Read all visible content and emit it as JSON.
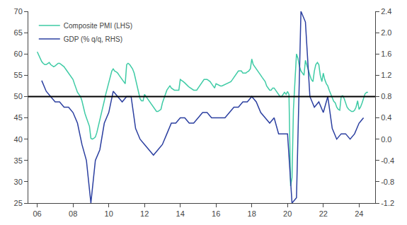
{
  "chart_data": {
    "type": "line",
    "series": [
      {
        "name": "Composite PMI (LHS)",
        "color": "#3ECBA5",
        "x": [
          2006.0,
          2006.08,
          2006.17,
          2006.25,
          2006.33,
          2006.42,
          2006.5,
          2006.58,
          2006.67,
          2006.75,
          2006.83,
          2006.92,
          2007.0,
          2007.08,
          2007.17,
          2007.25,
          2007.33,
          2007.42,
          2007.5,
          2007.58,
          2007.67,
          2007.75,
          2007.83,
          2007.92,
          2008.0,
          2008.08,
          2008.17,
          2008.25,
          2008.33,
          2008.42,
          2008.5,
          2008.58,
          2008.67,
          2008.75,
          2008.83,
          2008.92,
          2009.0,
          2009.08,
          2009.17,
          2009.25,
          2009.33,
          2009.42,
          2009.5,
          2009.58,
          2009.67,
          2009.75,
          2009.83,
          2009.92,
          2010.0,
          2010.08,
          2010.17,
          2010.25,
          2010.33,
          2010.42,
          2010.5,
          2010.58,
          2010.67,
          2010.75,
          2010.83,
          2010.92,
          2011.0,
          2011.08,
          2011.17,
          2011.25,
          2011.33,
          2011.42,
          2011.5,
          2011.58,
          2011.67,
          2011.75,
          2011.83,
          2011.92,
          2012.0,
          2012.08,
          2012.17,
          2012.25,
          2012.33,
          2012.42,
          2012.5,
          2012.58,
          2012.67,
          2012.75,
          2012.83,
          2012.92,
          2013.0,
          2013.08,
          2013.17,
          2013.25,
          2013.33,
          2013.42,
          2013.5,
          2013.58,
          2013.67,
          2013.75,
          2013.83,
          2013.92,
          2014.0,
          2014.08,
          2014.17,
          2014.25,
          2014.33,
          2014.42,
          2014.5,
          2014.58,
          2014.67,
          2014.75,
          2014.83,
          2014.92,
          2015.0,
          2015.08,
          2015.17,
          2015.25,
          2015.33,
          2015.42,
          2015.5,
          2015.58,
          2015.67,
          2015.75,
          2015.83,
          2015.92,
          2016.0,
          2016.08,
          2016.17,
          2016.25,
          2016.33,
          2016.42,
          2016.5,
          2016.58,
          2016.67,
          2016.75,
          2016.83,
          2016.92,
          2017.0,
          2017.08,
          2017.17,
          2017.25,
          2017.33,
          2017.42,
          2017.5,
          2017.58,
          2017.67,
          2017.75,
          2017.83,
          2017.92,
          2018.0,
          2018.08,
          2018.17,
          2018.25,
          2018.33,
          2018.42,
          2018.5,
          2018.58,
          2018.67,
          2018.75,
          2018.83,
          2018.92,
          2019.0,
          2019.08,
          2019.17,
          2019.25,
          2019.33,
          2019.42,
          2019.5,
          2019.58,
          2019.67,
          2019.75,
          2019.83,
          2019.92,
          2020.0,
          2020.08,
          2020.17,
          2020.25,
          2020.33,
          2020.42,
          2020.5,
          2020.58,
          2020.67,
          2020.75,
          2020.83,
          2020.92,
          2021.0,
          2021.08,
          2021.17,
          2021.25,
          2021.33,
          2021.42,
          2021.5,
          2021.58,
          2021.67,
          2021.75,
          2021.83,
          2021.92,
          2022.0,
          2022.08,
          2022.17,
          2022.25,
          2022.33,
          2022.42,
          2022.5,
          2022.58,
          2022.67,
          2022.75,
          2022.83,
          2022.92,
          2023.0,
          2023.08,
          2023.17,
          2023.25,
          2023.33,
          2023.42,
          2023.5,
          2023.58,
          2023.67,
          2023.75,
          2023.83,
          2023.92,
          2024.0,
          2024.08,
          2024.17,
          2024.25,
          2024.33,
          2024.42,
          2024.5
        ],
        "values": [
          60.5,
          59.8,
          59.0,
          58.2,
          57.8,
          57.5,
          57.5,
          57.8,
          58.0,
          57.5,
          57.2,
          57.0,
          57.2,
          57.5,
          57.8,
          57.8,
          57.5,
          57.2,
          57.0,
          56.5,
          56.0,
          55.5,
          55.0,
          54.5,
          54.0,
          53.0,
          52.0,
          51.0,
          50.5,
          50.0,
          49.0,
          47.5,
          46.0,
          45.0,
          44.0,
          43.0,
          40.2,
          40.0,
          40.2,
          40.5,
          41.5,
          43.0,
          44.5,
          46.0,
          47.5,
          49.0,
          50.5,
          52.0,
          53.0,
          54.5,
          56.0,
          56.5,
          56.0,
          55.8,
          55.5,
          55.0,
          54.5,
          54.0,
          53.5,
          53.0,
          57.5,
          57.8,
          57.5,
          57.0,
          56.5,
          55.5,
          54.0,
          52.5,
          51.0,
          49.5,
          49.0,
          49.0,
          50.5,
          50.0,
          49.5,
          49.0,
          48.5,
          48.0,
          47.5,
          47.0,
          46.5,
          46.5,
          46.7,
          47.0,
          48.5,
          49.5,
          50.5,
          51.5,
          52.0,
          52.5,
          52.0,
          51.8,
          51.5,
          51.5,
          51.5,
          51.5,
          54.0,
          53.8,
          53.5,
          53.2,
          52.8,
          52.5,
          52.2,
          52.0,
          51.8,
          51.5,
          51.5,
          51.5,
          52.0,
          52.5,
          53.0,
          53.5,
          54.0,
          54.0,
          54.0,
          53.8,
          53.5,
          53.0,
          52.5,
          52.0,
          53.0,
          52.8,
          52.7,
          52.5,
          52.5,
          52.7,
          52.8,
          53.0,
          53.2,
          53.3,
          53.5,
          54.0,
          54.5,
          55.0,
          55.5,
          56.0,
          56.0,
          56.0,
          55.5,
          55.5,
          55.5,
          55.8,
          56.0,
          56.5,
          58.8,
          57.5,
          57.0,
          56.5,
          56.0,
          55.5,
          55.0,
          54.5,
          54.0,
          53.5,
          52.5,
          52.0,
          51.5,
          51.5,
          52.0,
          52.0,
          51.5,
          51.0,
          50.5,
          50.0,
          50.0,
          50.5,
          51.0,
          50.5,
          51.2,
          50.5,
          29.0,
          31.0,
          47.0,
          54.0,
          60.0,
          59.0,
          57.0,
          56.0,
          55.5,
          55.0,
          58.5,
          57.5,
          56.0,
          55.0,
          54.0,
          53.5,
          56.0,
          57.5,
          58.0,
          57.5,
          55.0,
          53.5,
          55.5,
          54.0,
          53.0,
          52.5,
          51.5,
          50.5,
          49.5,
          48.9,
          48.5,
          47.5,
          47.0,
          46.8,
          50.0,
          50.2,
          49.5,
          48.5,
          47.5,
          47.0,
          46.8,
          46.5,
          46.5,
          46.8,
          47.5,
          49.0,
          47.0,
          47.5,
          48.5,
          49.5,
          50.6,
          51.0,
          51.0
        ]
      },
      {
        "name": "GDP (% q/q, RHS)",
        "color": "#2B3FA0",
        "axis": "y2",
        "x": [
          2006.25,
          2006.5,
          2006.75,
          2007.0,
          2007.25,
          2007.5,
          2007.75,
          2008.0,
          2008.25,
          2008.5,
          2008.75,
          2009.0,
          2009.25,
          2009.5,
          2009.75,
          2010.0,
          2010.25,
          2010.5,
          2010.75,
          2011.0,
          2011.25,
          2011.5,
          2011.75,
          2012.0,
          2012.25,
          2012.5,
          2012.75,
          2013.0,
          2013.25,
          2013.5,
          2013.75,
          2014.0,
          2014.25,
          2014.5,
          2014.75,
          2015.0,
          2015.25,
          2015.5,
          2015.75,
          2016.0,
          2016.25,
          2016.5,
          2016.75,
          2017.0,
          2017.25,
          2017.5,
          2017.75,
          2018.0,
          2018.25,
          2018.5,
          2018.75,
          2019.0,
          2019.25,
          2019.5,
          2019.75,
          2020.0,
          2020.25,
          2020.5,
          2020.75,
          2021.0,
          2021.25,
          2021.5,
          2021.75,
          2022.0,
          2022.25,
          2022.5,
          2022.75,
          2023.0,
          2023.25,
          2023.5,
          2023.75,
          2024.0,
          2024.25
        ],
        "values": [
          1.1,
          0.9,
          0.8,
          0.7,
          0.7,
          0.6,
          0.6,
          0.5,
          0.3,
          -0.1,
          -0.4,
          -1.2,
          -0.4,
          -0.2,
          0.3,
          0.5,
          0.9,
          0.8,
          0.7,
          0.8,
          0.8,
          0.2,
          0.0,
          -0.1,
          -0.2,
          -0.3,
          -0.2,
          -0.1,
          0.1,
          0.3,
          0.3,
          0.4,
          0.4,
          0.3,
          0.3,
          0.4,
          0.5,
          0.5,
          0.4,
          0.4,
          0.4,
          0.4,
          0.5,
          0.6,
          0.6,
          0.7,
          0.7,
          0.8,
          0.7,
          0.5,
          0.4,
          0.3,
          0.4,
          0.1,
          0.1,
          0.1,
          -1.2,
          -1.1,
          2.4,
          2.2,
          0.8,
          0.6,
          0.7,
          0.5,
          0.8,
          0.2,
          0.0,
          0.1,
          0.1,
          0.0,
          0.1,
          0.3,
          0.4
        ]
      }
    ],
    "reference_line": {
      "y": 50,
      "color": "black"
    },
    "xlim": [
      2005.5,
      2024.9
    ],
    "xticks": [
      {
        "value": 2006,
        "label": "06"
      },
      {
        "value": 2008,
        "label": "08"
      },
      {
        "value": 2010,
        "label": "10"
      },
      {
        "value": 2012,
        "label": "12"
      },
      {
        "value": 2014,
        "label": "14"
      },
      {
        "value": 2016,
        "label": "16"
      },
      {
        "value": 2018,
        "label": "18"
      },
      {
        "value": 2020,
        "label": "20"
      },
      {
        "value": 2022,
        "label": "22"
      },
      {
        "value": 2024,
        "label": "24"
      }
    ],
    "ylim": [
      25,
      70
    ],
    "yticks": [
      25,
      30,
      35,
      40,
      45,
      50,
      55,
      60,
      65,
      70
    ],
    "y2lim": [
      -1.2,
      2.4
    ],
    "y2ticks": [
      -1.2,
      -0.8,
      -0.4,
      {
        "value": 0.0,
        "label": "0.0"
      },
      0.4,
      0.8,
      1.2,
      1.6,
      {
        "value": 2.0,
        "label": "2.0"
      },
      2.4
    ],
    "grid": false,
    "legend": "upper left"
  }
}
